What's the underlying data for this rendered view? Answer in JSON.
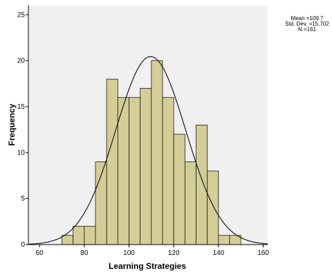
{
  "chart_data": {
    "type": "histogram",
    "xlabel": "Learning Strategies",
    "ylabel": "Frequency",
    "xlim": [
      55,
      162
    ],
    "ylim": [
      0,
      26
    ],
    "x_ticks": [
      60,
      80,
      100,
      120,
      140,
      160
    ],
    "y_ticks": [
      0,
      5,
      10,
      15,
      20,
      25
    ],
    "bin_width": 5,
    "bins": [
      {
        "start": 70,
        "end": 75,
        "count": 1
      },
      {
        "start": 75,
        "end": 80,
        "count": 2
      },
      {
        "start": 80,
        "end": 85,
        "count": 2
      },
      {
        "start": 85,
        "end": 90,
        "count": 9
      },
      {
        "start": 90,
        "end": 95,
        "count": 18
      },
      {
        "start": 95,
        "end": 100,
        "count": 16
      },
      {
        "start": 100,
        "end": 105,
        "count": 16
      },
      {
        "start": 105,
        "end": 110,
        "count": 17
      },
      {
        "start": 110,
        "end": 115,
        "count": 20
      },
      {
        "start": 115,
        "end": 120,
        "count": 16
      },
      {
        "start": 120,
        "end": 125,
        "count": 12
      },
      {
        "start": 125,
        "end": 130,
        "count": 9
      },
      {
        "start": 130,
        "end": 135,
        "count": 13
      },
      {
        "start": 135,
        "end": 140,
        "count": 8
      },
      {
        "start": 140,
        "end": 145,
        "count": 1
      },
      {
        "start": 145,
        "end": 150,
        "count": 1
      }
    ],
    "normal_curve": {
      "mean": 109.7,
      "std": 15.702,
      "n": 161
    },
    "stats_text": [
      "Mean =109.7",
      "Std. Dev. =15.702",
      "N =161"
    ],
    "grid": false,
    "colors": {
      "bar_fill": "#d3cd96",
      "bar_stroke": "#1a1a1a",
      "plot_bg": "#f0f0f0",
      "curve": "#1a1a1a",
      "axis": "#000000"
    }
  }
}
